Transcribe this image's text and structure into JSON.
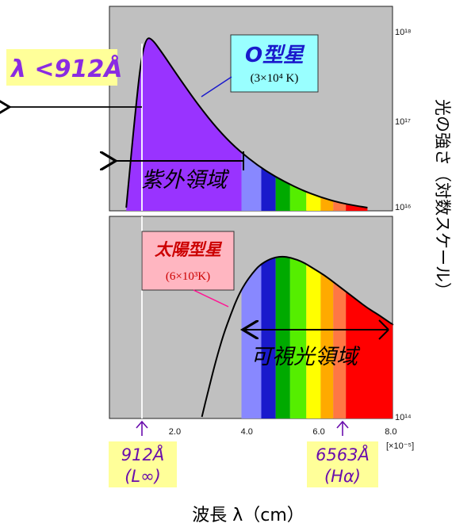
{
  "chart_data": [
    {
      "type": "area",
      "panel": "top",
      "series": [
        {
          "name": "O型星",
          "x": [
            0.6,
            0.8,
            1.0,
            1.15,
            1.3,
            1.6,
            2.0,
            2.5,
            3.0,
            3.5,
            4.0,
            4.5,
            5.0,
            5.5,
            6.0,
            6.5,
            7.0,
            7.3
          ],
          "y": [
            16.0,
            16.9,
            17.7,
            17.97,
            17.97,
            17.8,
            17.55,
            17.25,
            16.98,
            16.75,
            16.57,
            16.42,
            16.3,
            16.2,
            16.12,
            16.06,
            16.02,
            16.0
          ]
        }
      ],
      "y_ticks": [
        "10¹⁶",
        "10¹⁷",
        "10¹⁸"
      ],
      "ylim_exp": [
        16,
        18.2
      ],
      "xlim": [
        0,
        8.0
      ],
      "scale": "log"
    },
    {
      "type": "area",
      "panel": "bottom",
      "series": [
        {
          "name": "太陽型星",
          "x": [
            2.7,
            2.9,
            3.1,
            3.3,
            3.5,
            3.7,
            3.9,
            4.1,
            4.3,
            4.6,
            4.9,
            5.2,
            5.5,
            5.8,
            6.1,
            6.4,
            6.7,
            7.0,
            7.3,
            7.6,
            7.8,
            8.0
          ],
          "y": [
            0.0,
            0.18,
            0.35,
            0.5,
            0.62,
            0.73,
            0.81,
            0.87,
            0.92,
            0.96,
            0.975,
            0.965,
            0.94,
            0.9,
            0.86,
            0.81,
            0.76,
            0.71,
            0.66,
            0.62,
            0.59,
            0.56
          ]
        }
      ],
      "y_ticks": [
        "10¹⁴"
      ],
      "x_ticks": [
        "2.0",
        "4.0",
        "6.0",
        "8.0"
      ],
      "x_tick_values": [
        2.0,
        4.0,
        6.0,
        8.0
      ],
      "x_multiplier": "[×10⁻⁵]",
      "xlim": [
        0,
        8.0
      ]
    }
  ],
  "colors": {
    "background": "#c0c0c0",
    "uv": "#9933ff",
    "uv_dark": "#7d1fe0",
    "bands": [
      "#8888ff",
      "#1a1acc",
      "#00aa00",
      "#55ee00",
      "#ffff00",
      "#ffaa00",
      "#ff7744",
      "#ff0000"
    ]
  },
  "labels": {
    "lambda_left": "λ <912Å",
    "o_star_title": "O型星",
    "o_star_temp": "(3×10⁴ K)",
    "uv_region": "紫外領域",
    "sun_star_title": "太陽型星",
    "sun_star_temp": "(6×10³K)",
    "visible_region": "可視光領域",
    "y_axis_label": "光の強さ（対数スケール）",
    "x_axis_label": "波長 λ（cm）",
    "marker_912_line1": "912Å",
    "marker_912_line2": "(L∞)",
    "marker_6563_line1": "6563Å",
    "marker_6563_line2": "(Hα)"
  }
}
